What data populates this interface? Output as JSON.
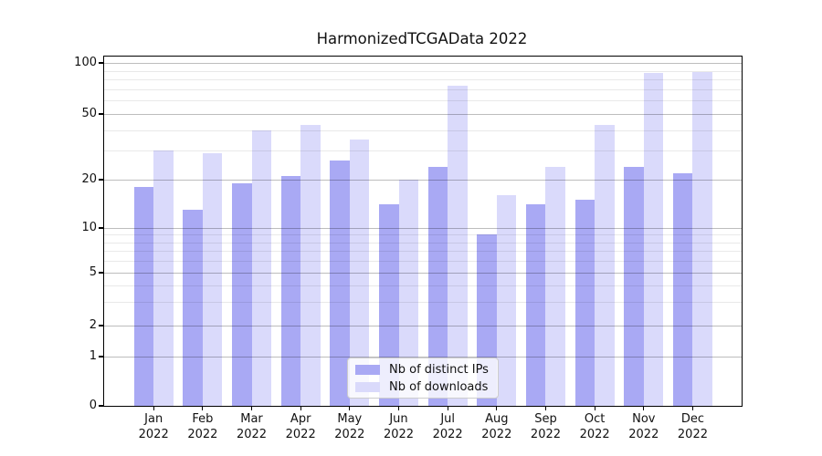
{
  "title": "HarmonizedTCGAData 2022",
  "axes": {
    "y_tick_labels": [
      "100",
      "50",
      "20",
      "10",
      "5",
      "2",
      "1",
      "0"
    ],
    "x_year_label": "2022"
  },
  "legend": {
    "position": "lower center",
    "items": [
      "Nb of distinct IPs",
      "Nb of downloads"
    ]
  },
  "chart_data": {
    "type": "bar",
    "title": "HarmonizedTCGAData 2022",
    "categories": [
      "Jan",
      "Feb",
      "Mar",
      "Apr",
      "May",
      "Jun",
      "Jul",
      "Aug",
      "Sep",
      "Oct",
      "Nov",
      "Dec"
    ],
    "category_year": "2022",
    "series": [
      {
        "name": "Nb of distinct IPs",
        "color": "#a9a9f4",
        "values": [
          18,
          13,
          19,
          21,
          26,
          14,
          24,
          9,
          14,
          15,
          24,
          22
        ]
      },
      {
        "name": "Nb of downloads",
        "color": "#dadafb",
        "values": [
          30,
          29,
          40,
          43,
          35,
          20,
          73,
          16,
          24,
          43,
          87,
          88
        ]
      }
    ],
    "yscale": "symlog",
    "ylim": [
      0,
      109
    ],
    "yticks": [
      0,
      1,
      2,
      5,
      10,
      20,
      50,
      100
    ],
    "minor_gridlines": [
      3,
      4,
      6,
      7,
      8,
      9,
      30,
      40,
      60,
      70,
      80,
      90
    ],
    "grid": true,
    "legend_position": "lower center"
  }
}
